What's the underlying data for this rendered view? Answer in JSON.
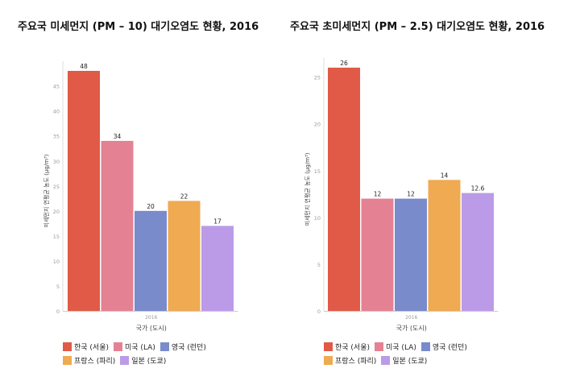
{
  "colors": [
    "#e05a47",
    "#e48294",
    "#7a8bcc",
    "#efaa52",
    "#bb9be8"
  ],
  "charts": [
    {
      "title": "주요국 미세먼지 (PM – 10) 대기오염도 현황, 2016",
      "chart_data": {
        "type": "bar",
        "categories": [
          "2016"
        ],
        "series": [
          {
            "name": "한국 (서울)",
            "values": [
              48
            ]
          },
          {
            "name": "미국 (LA)",
            "values": [
              34
            ]
          },
          {
            "name": "영국 (런던)",
            "values": [
              20
            ]
          },
          {
            "name": "프랑스 (파리)",
            "values": [
              22
            ]
          },
          {
            "name": "일본 (도쿄)",
            "values": [
              17
            ]
          }
        ],
        "value_labels": [
          "48",
          "34",
          "20",
          "22",
          "17"
        ],
        "xlabel": "국가 (도시)",
        "ylabel": "미세먼지 연평균 농도 (μg/m³)",
        "ylim": [
          0,
          48
        ],
        "yticks": [
          "0",
          "5",
          "10",
          "15",
          "20",
          "25",
          "30",
          "35",
          "40",
          "45"
        ],
        "legend": "bottom"
      }
    },
    {
      "title": "주요국 초미세먼지 (PM – 2.5) 대기오염도 현황, 2016",
      "chart_data": {
        "type": "bar",
        "categories": [
          "2016"
        ],
        "series": [
          {
            "name": "한국 (서울)",
            "values": [
              26
            ]
          },
          {
            "name": "미국 (LA)",
            "values": [
              12
            ]
          },
          {
            "name": "영국 (런던)",
            "values": [
              12
            ]
          },
          {
            "name": "프랑스 (파리)",
            "values": [
              14
            ]
          },
          {
            "name": "일본 (도쿄)",
            "values": [
              12.6
            ]
          }
        ],
        "value_labels": [
          "26",
          "12",
          "12",
          "14",
          "12.6"
        ],
        "xlabel": "국가 (도시)",
        "ylabel": "미세먼지 연평균 농도 (μg/m³)",
        "ylim": [
          0,
          26
        ],
        "yticks": [
          "0",
          "5",
          "10",
          "15",
          "20",
          "25"
        ],
        "legend": "bottom"
      }
    }
  ]
}
